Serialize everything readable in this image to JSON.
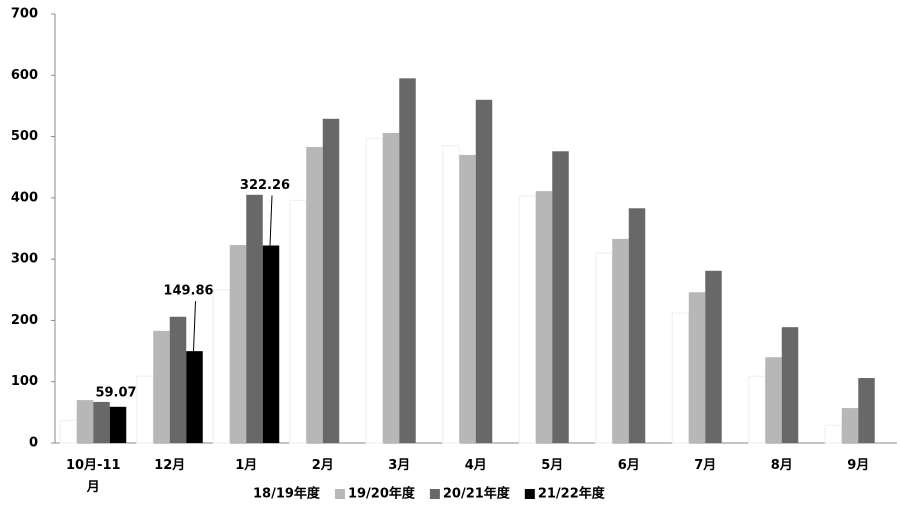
{
  "chart_data": {
    "type": "bar",
    "categories": [
      "10月-11月",
      "12月",
      "1月",
      "2月",
      "3月",
      "4月",
      "5月",
      "6月",
      "7月",
      "8月",
      "9月"
    ],
    "series": [
      {
        "name": "18/19年度",
        "color": "#ffffff",
        "values": [
          37,
          109,
          250,
          396,
          497,
          485,
          403,
          310,
          212,
          109,
          29
        ]
      },
      {
        "name": "19/20年度",
        "color": "#b7b7b7",
        "values": [
          70,
          183,
          323,
          483,
          506,
          470,
          411,
          333,
          246,
          140,
          57
        ]
      },
      {
        "name": "20/21年度",
        "color": "#686868",
        "values": [
          67,
          206,
          405,
          529,
          595,
          560,
          476,
          383,
          281,
          189,
          106
        ]
      },
      {
        "name": "21/22年度",
        "color": "#000000",
        "values": [
          59.07,
          149.86,
          322.26,
          null,
          null,
          null,
          null,
          null,
          null,
          null,
          null
        ]
      }
    ],
    "ylim": [
      0,
      700
    ],
    "yticks": [
      0,
      100,
      200,
      300,
      400,
      500,
      600,
      700
    ],
    "legend": "bottom",
    "data_labels_series": 3
  }
}
